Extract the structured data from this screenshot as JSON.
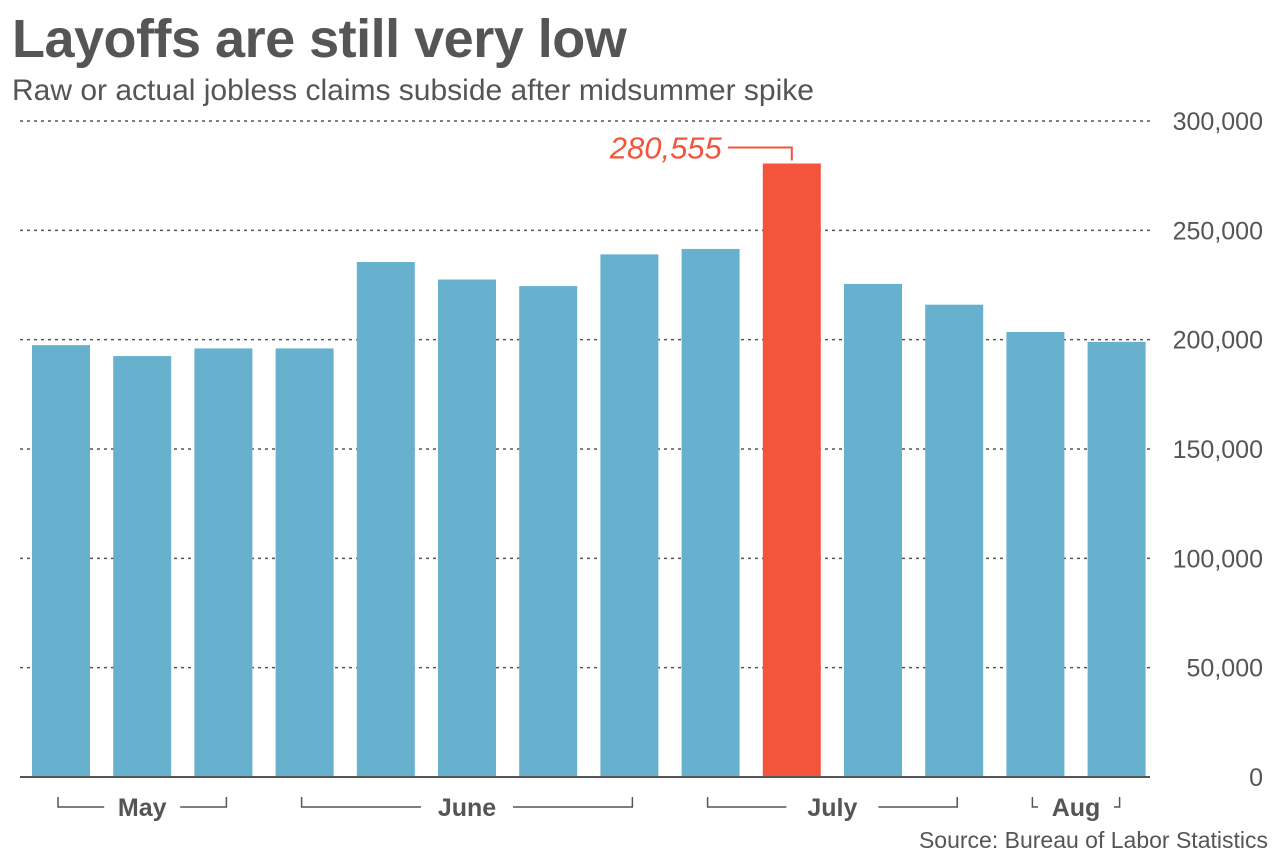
{
  "chart_data": {
    "type": "bar",
    "title": "Layoffs are still very low",
    "subtitle": "Raw or actual jobless claims subside after midsummer spike",
    "source": "Source: Bureau of Labor Statistics",
    "values": [
      197500,
      192500,
      196000,
      196000,
      235500,
      227500,
      224500,
      239000,
      241500,
      280555,
      225500,
      216000,
      203500,
      199000
    ],
    "highlight_index": 9,
    "annotation": {
      "bar_index": 9,
      "text": "280,555"
    },
    "months": [
      {
        "label": "May",
        "first_bar": 0,
        "last_bar": 2
      },
      {
        "label": "June",
        "first_bar": 3,
        "last_bar": 7
      },
      {
        "label": "July",
        "first_bar": 8,
        "last_bar": 11
      },
      {
        "label": "Aug",
        "first_bar": 12,
        "last_bar": 13
      }
    ],
    "y_ticks": [
      {
        "value": 0,
        "label": "0"
      },
      {
        "value": 50000,
        "label": "50,000"
      },
      {
        "value": 100000,
        "label": "100,000"
      },
      {
        "value": 150000,
        "label": "150,000"
      },
      {
        "value": 200000,
        "label": "200,000"
      },
      {
        "value": 250000,
        "label": "250,000"
      },
      {
        "value": 300000,
        "label": "300,000"
      }
    ],
    "ylim": [
      0,
      300000
    ],
    "grid": true,
    "y_axis_position": "right",
    "colors": {
      "bar": "#67b1cf",
      "highlight": "#f4533c",
      "grid": "#555555"
    }
  }
}
